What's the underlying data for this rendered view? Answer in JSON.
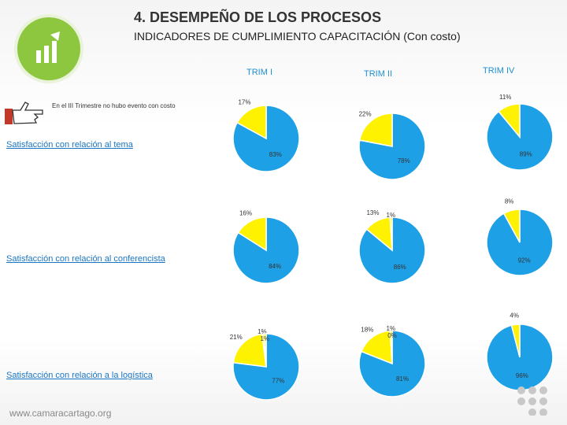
{
  "header": {
    "title": "4. DESEMPEÑO DE LOS PROCESOS",
    "subtitle": "INDICADORES DE CUMPLIMIENTO CAPACITACIÓN (Con costo)"
  },
  "columns": [
    "TRIM I",
    "TRIM II",
    "TRIM IV"
  ],
  "note": "En el III Trimestre no hubo evento con costo",
  "sections": [
    "Satisfacción con relación al tema",
    "Satisfacción con relación al conferencista",
    "Satisfacción con relación a la logística"
  ],
  "footer": "www.camaracartago.org",
  "colors": {
    "main": "#1ea0e6",
    "minor": "#fff200",
    "accent": "#8dc63f",
    "link": "#1a76c2"
  },
  "chart_data": [
    {
      "type": "pie",
      "title": "",
      "categories": [
        "83%",
        "17%"
      ],
      "values": [
        83,
        17
      ]
    },
    {
      "type": "pie",
      "title": "",
      "categories": [
        "78%",
        "22%"
      ],
      "values": [
        78,
        22
      ]
    },
    {
      "type": "pie",
      "title": "",
      "categories": [
        "89%",
        "11%"
      ],
      "values": [
        89,
        11
      ]
    },
    {
      "type": "pie",
      "title": "",
      "categories": [
        "84%",
        "16%"
      ],
      "values": [
        84,
        16
      ]
    },
    {
      "type": "pie",
      "title": "",
      "categories": [
        "86%",
        "13%",
        "1%"
      ],
      "values": [
        86,
        13,
        1
      ]
    },
    {
      "type": "pie",
      "title": "",
      "categories": [
        "92%",
        "8%"
      ],
      "values": [
        92,
        8
      ]
    },
    {
      "type": "pie",
      "title": "",
      "categories": [
        "77%",
        "21%",
        "1%",
        "1%"
      ],
      "values": [
        77,
        21,
        1,
        1
      ]
    },
    {
      "type": "pie",
      "title": "",
      "categories": [
        "81%",
        "18%",
        "1%",
        "0%"
      ],
      "values": [
        81,
        18,
        1,
        0
      ]
    },
    {
      "type": "pie",
      "title": "",
      "categories": [
        "96%",
        "4%"
      ],
      "values": [
        96,
        4
      ]
    }
  ]
}
